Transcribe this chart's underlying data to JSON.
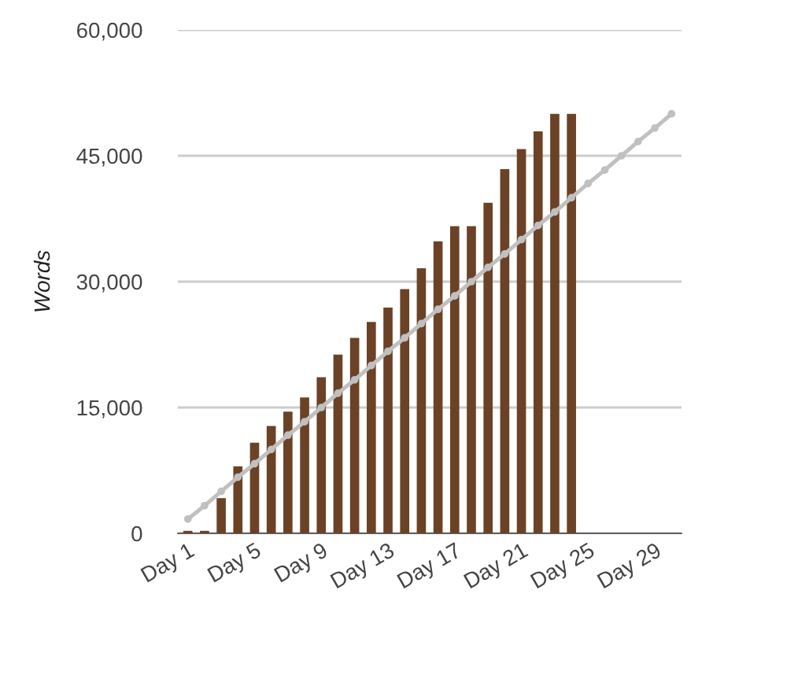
{
  "chart_data": {
    "type": "bar",
    "ylabel": "Words",
    "categories": [
      "Day 1",
      null,
      null,
      null,
      "Day 5",
      null,
      null,
      null,
      "Day 9",
      null,
      null,
      null,
      "Day 13",
      null,
      null,
      null,
      "Day 17",
      null,
      null,
      null,
      "Day 21",
      null,
      null,
      null,
      "Day 25",
      null,
      null,
      null,
      "Day 29",
      null
    ],
    "series": [
      {
        "color": "#6b4226",
        "values": [
          300,
          300,
          4200,
          8000,
          10800,
          12800,
          14500,
          16200,
          18600,
          21300,
          23300,
          25200,
          26900,
          29100,
          31600,
          34800,
          36600,
          36600,
          39400,
          43400,
          45800,
          47900,
          50000,
          50000,
          null,
          null,
          null,
          null,
          null,
          null
        ]
      },
      {
        "type": "line",
        "color": "#c0c0c0",
        "marker": "circle",
        "line_style": "solid",
        "values": [
          1700,
          3300,
          5000,
          6700,
          8300,
          10000,
          11700,
          13300,
          15000,
          16700,
          18300,
          20000,
          21700,
          23300,
          25000,
          26700,
          28300,
          30000,
          31700,
          33300,
          35000,
          36700,
          38300,
          40000,
          41700,
          43300,
          45000,
          46700,
          48300,
          50000
        ]
      }
    ],
    "ylim": [
      0,
      60000
    ],
    "yticks": [
      {
        "value": 0,
        "label": "0"
      },
      {
        "value": 15000,
        "label": "15,000"
      },
      {
        "value": 30000,
        "label": "30,000"
      },
      {
        "value": 45000,
        "label": "45,000"
      },
      {
        "value": 60000,
        "label": "60,000"
      }
    ],
    "grid": "y",
    "legend": false
  }
}
